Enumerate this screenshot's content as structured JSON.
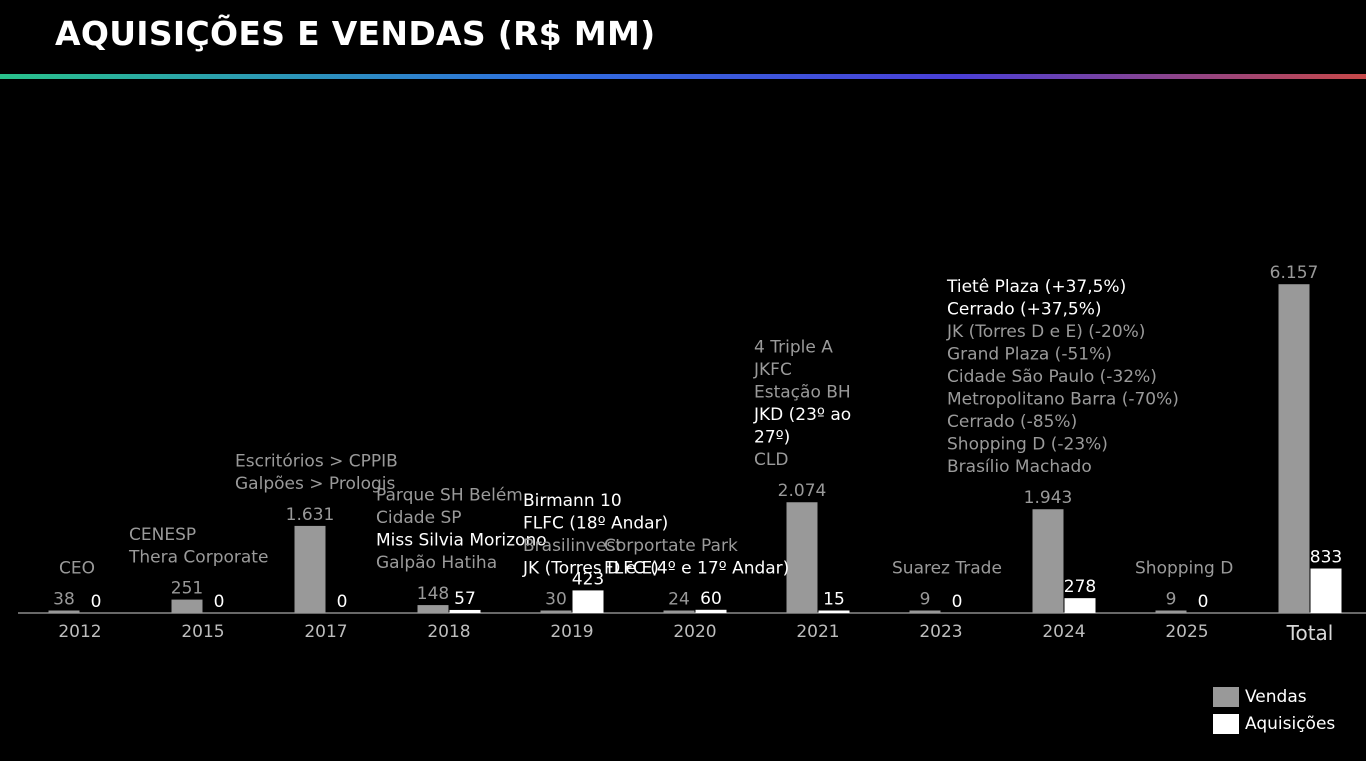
{
  "title": "AQUISIÇÕES E VENDAS (R$ MM)",
  "colors": {
    "vendas": "#999999",
    "aquisicoes": "#ffffff",
    "note_dim": "#9a9a9a",
    "note_bright": "#ffffff"
  },
  "legend": {
    "vendas_label": "Vendas",
    "aquisicoes_label": "Aquisições"
  },
  "chart_data": {
    "type": "bar",
    "title": "AQUISIÇÕES E VENDAS (R$ MM)",
    "xlabel": "",
    "ylabel": "",
    "grid": false,
    "legend_position": "bottom-right",
    "categories": [
      "2012",
      "2015",
      "2017",
      "2018",
      "2019",
      "2020",
      "2021",
      "2023",
      "2024",
      "2025",
      "Total"
    ],
    "series": [
      {
        "name": "Vendas",
        "values": [
          38,
          251,
          1631,
          148,
          30,
          24,
          2074,
          9,
          1943,
          9,
          6157
        ],
        "labels": [
          "38",
          "251",
          "1.631",
          "148",
          "30",
          "24",
          "2.074",
          "9",
          "1.943",
          "9",
          "6.157"
        ]
      },
      {
        "name": "Aquisições",
        "values": [
          0,
          0,
          0,
          57,
          423,
          60,
          15,
          0,
          278,
          0,
          833
        ],
        "labels": [
          "0",
          "0",
          "0",
          "57",
          "423",
          "60",
          "15",
          "0",
          "278",
          "0",
          "833"
        ]
      }
    ],
    "annotations": [
      {
        "category": "2012",
        "lines": [
          {
            "text": "CEO",
            "highlight": false
          }
        ]
      },
      {
        "category": "2015",
        "lines": [
          {
            "text": "CENESP",
            "highlight": false
          },
          {
            "text": "Thera Corporate",
            "highlight": false
          }
        ]
      },
      {
        "category": "2017",
        "lines": [
          {
            "text": "Escritórios > CPPIB",
            "highlight": false
          },
          {
            "text": "Galpões > Prologis",
            "highlight": false
          }
        ]
      },
      {
        "category": "2018",
        "lines": [
          {
            "text": "Parque SH Belém",
            "highlight": false
          },
          {
            "text": "Cidade SP",
            "highlight": false
          },
          {
            "text": "Miss Silvia Morizono",
            "highlight": true
          },
          {
            "text": "Galpão Hatiha",
            "highlight": false
          }
        ]
      },
      {
        "category": "2019",
        "lines": [
          {
            "text": "Birmann 10",
            "highlight": true
          },
          {
            "text": "FLFC (18º Andar)",
            "highlight": true
          },
          {
            "text": "Brasilinvest",
            "highlight": false
          },
          {
            "text": "JK (Torres D e E)",
            "highlight": true
          }
        ]
      },
      {
        "category": "2020",
        "lines": [
          {
            "text": "Corportate Park",
            "highlight": false
          },
          {
            "text": "FLFC (4º e 17º Andar)",
            "highlight": true
          }
        ]
      },
      {
        "category": "2021",
        "lines": [
          {
            "text": "4 Triple A",
            "highlight": false
          },
          {
            "text": "JKFC",
            "highlight": false
          },
          {
            "text": "Estação BH",
            "highlight": false
          },
          {
            "text": "JKD (23º ao",
            "highlight": true
          },
          {
            "text": "27º)",
            "highlight": true
          },
          {
            "text": "CLD",
            "highlight": false
          }
        ]
      },
      {
        "category": "2023",
        "lines": [
          {
            "text": "Suarez Trade",
            "highlight": false
          }
        ]
      },
      {
        "category": "2024",
        "lines": [
          {
            "text": "Tietê Plaza (+37,5%)",
            "highlight": true
          },
          {
            "text": "Cerrado (+37,5%)",
            "highlight": true
          },
          {
            "text": "JK (Torres D e E) (-20%)",
            "highlight": false
          },
          {
            "text": "Grand Plaza (-51%)",
            "highlight": false
          },
          {
            "text": "Cidade São Paulo (-32%)",
            "highlight": false
          },
          {
            "text": "Metropolitano Barra (-70%)",
            "highlight": false
          },
          {
            "text": "Cerrado (-85%)",
            "highlight": false
          },
          {
            "text": "Shopping D (-23%)",
            "highlight": false
          },
          {
            "text": "Brasílio Machado",
            "highlight": false
          }
        ]
      },
      {
        "category": "2025",
        "lines": [
          {
            "text": "Shopping D",
            "highlight": false
          }
        ]
      }
    ]
  }
}
